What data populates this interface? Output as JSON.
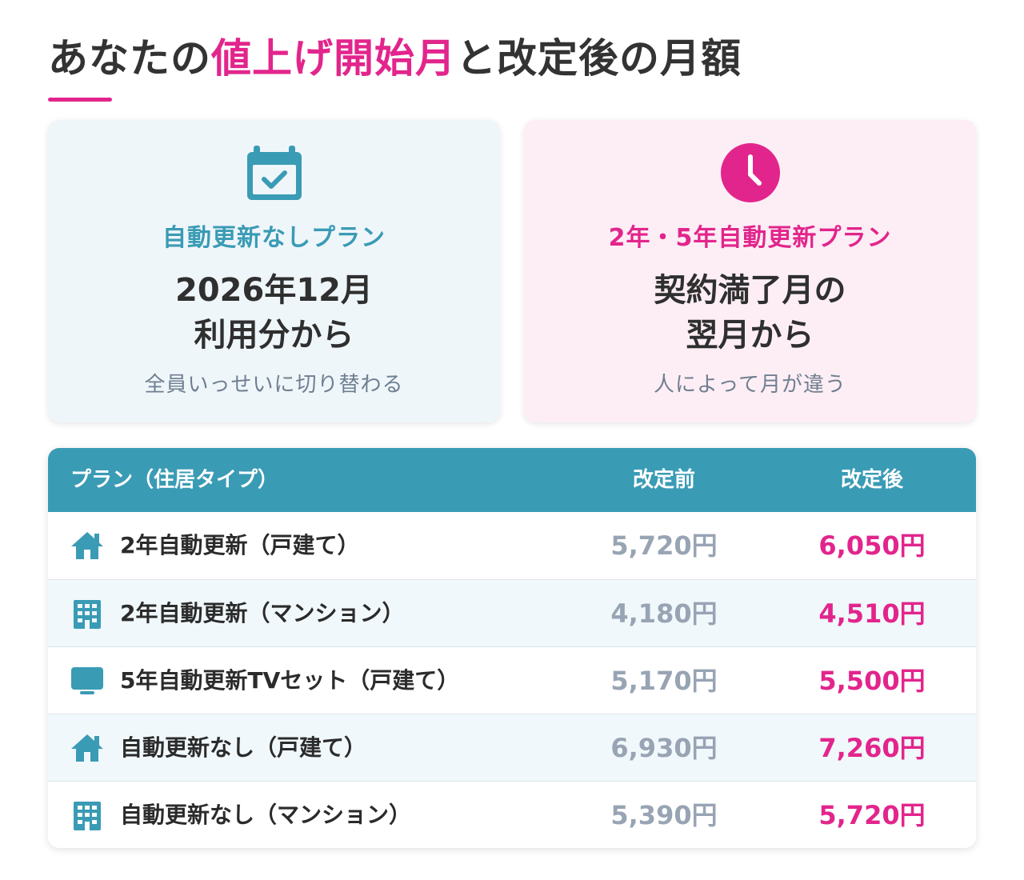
{
  "header": {
    "title_pre": "あなたの",
    "title_accent": "値上げ開始月",
    "title_post": "と改定後の月額"
  },
  "cards": [
    {
      "icon": "calendar-check-icon",
      "label": "自動更新なしプラン",
      "main_line1": "2026年12月",
      "main_line2": "利用分から",
      "note": "全員いっせいに切り替わる"
    },
    {
      "icon": "clock-icon",
      "label": "2年・5年自動更新プラン",
      "main_line1": "契約満了月の",
      "main_line2": "翌月から",
      "note": "人によって月が違う"
    }
  ],
  "table": {
    "headers": {
      "plan": "プラン（住居タイプ）",
      "before": "改定前",
      "after": "改定後"
    },
    "rows": [
      {
        "icon": "house-icon",
        "name": "2年自動更新（戸建て）",
        "before": "5,720円",
        "after": "6,050円"
      },
      {
        "icon": "building-icon",
        "name": "2年自動更新（マンション）",
        "before": "4,180円",
        "after": "4,510円"
      },
      {
        "icon": "tv-icon",
        "name": "5年自動更新TVセット（戸建て）",
        "before": "5,170円",
        "after": "5,500円"
      },
      {
        "icon": "house-icon",
        "name": "自動更新なし（戸建て）",
        "before": "6,930円",
        "after": "7,260円"
      },
      {
        "icon": "building-icon",
        "name": "自動更新なし（マンション）",
        "before": "5,390円",
        "after": "5,720円"
      }
    ]
  },
  "colors": {
    "accent_pink": "#e2258c",
    "accent_teal": "#3a9bb5",
    "muted_price": "#98a4b4"
  }
}
